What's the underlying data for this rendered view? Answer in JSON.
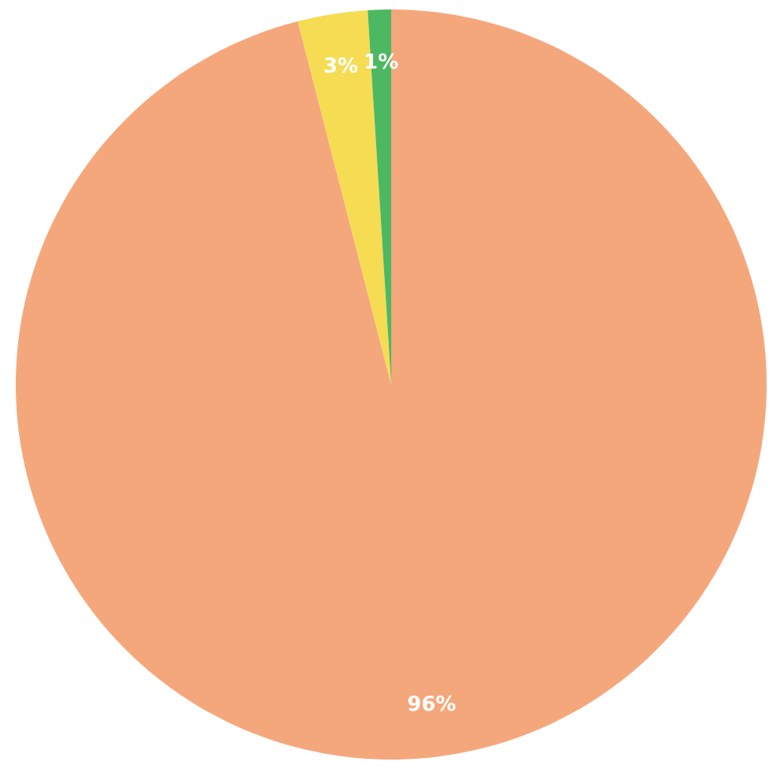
{
  "chart_data": {
    "type": "pie",
    "categories": [
      null,
      null,
      null
    ],
    "values": [
      96,
      3,
      1
    ],
    "colors": [
      "#f5a77c",
      "#f6dc52",
      "#4db862"
    ],
    "value_labels": [
      "96%",
      "3%",
      "1%"
    ],
    "legend": false
  }
}
